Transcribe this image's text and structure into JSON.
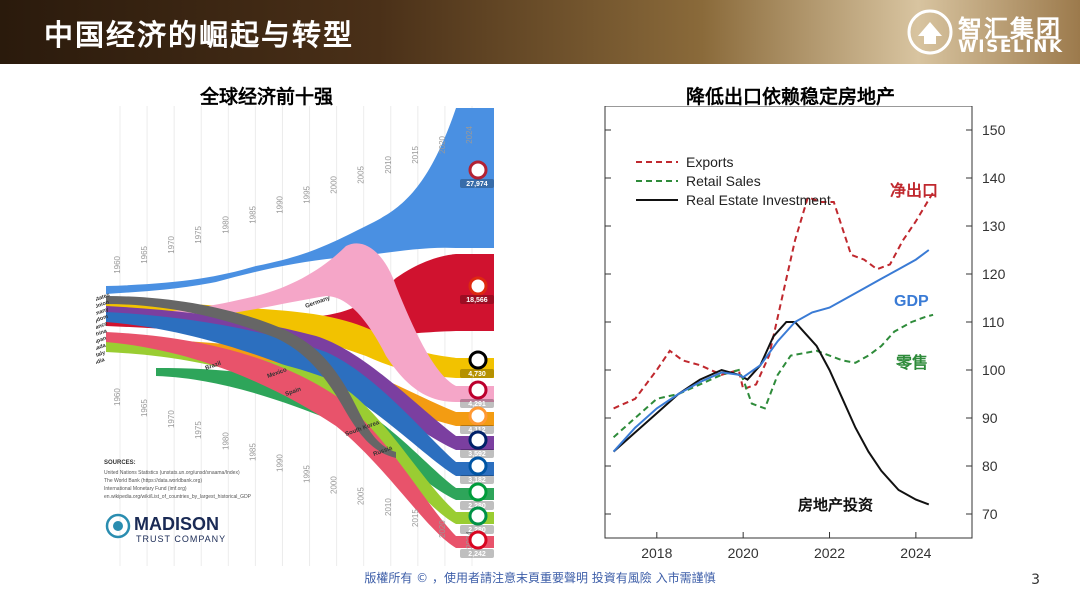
{
  "header": {
    "title": "中国经济的崛起与转型"
  },
  "logo": {
    "cn": "智汇集团",
    "en": "WISELINK"
  },
  "left": {
    "title": "全球经济前十强",
    "years": [
      "1960",
      "1965",
      "1970",
      "1975",
      "1980",
      "1985",
      "1990",
      "1995",
      "2000",
      "2005",
      "2010",
      "2015",
      "2020",
      "2024"
    ],
    "country_labels": [
      {
        "name": "United States",
        "value": "27,974"
      },
      {
        "name": "China",
        "value": "18,566"
      },
      {
        "name": "Germany",
        "value": "4,730"
      },
      {
        "name": "Japan",
        "value": "4,291"
      },
      {
        "name": "India",
        "value": "4,112"
      },
      {
        "name": "United Kingdom",
        "value": "3,592"
      },
      {
        "name": "France",
        "value": "3,182"
      },
      {
        "name": "Brazil",
        "value": "2,280"
      },
      {
        "name": "Italy",
        "value": "2,280"
      },
      {
        "name": "Canada",
        "value": "2,242"
      }
    ],
    "left_list": [
      "United States",
      "Soviet Union",
      "West Germany",
      "United Kingdom",
      "France",
      "China",
      "Japan",
      "Canada",
      "Italy",
      "India"
    ],
    "mid_labels": [
      "Brazil",
      "Mexico",
      "Spain",
      "Germany",
      "South Korea",
      "Russia"
    ],
    "sources_title": "SOURCES:",
    "sources": [
      "United Nations Statistics (unstats.un.org/unsd/snaama/Index)",
      "The World Bank (https://data.worldbank.org)",
      "International Monetary Fund (imf.org)",
      "en.wikipedia.org/wiki/List_of_countries_by_largest_historical_GDP"
    ],
    "brand_main": "MADISON",
    "brand_sub": "TRUST COMPANY"
  },
  "right": {
    "title": "降低出口依赖稳定房地产",
    "annotations": {
      "exports_cn": "净出口",
      "gdp": "GDP",
      "retail_cn": "零售",
      "realestate_cn": "房地产投资"
    }
  },
  "chart_data": {
    "type": "line",
    "x_ticks": [
      "2018",
      "2020",
      "2022",
      "2024"
    ],
    "ylim": [
      65,
      155
    ],
    "y_ticks": [
      70,
      80,
      90,
      100,
      110,
      120,
      130,
      140,
      150
    ],
    "legend": "top-left",
    "series": [
      {
        "name": "Exports",
        "color": "#c0282e",
        "style": "dashed",
        "points": [
          [
            2017.0,
            92
          ],
          [
            2017.5,
            94
          ],
          [
            2018.0,
            100
          ],
          [
            2018.3,
            104
          ],
          [
            2018.6,
            102
          ],
          [
            2019.0,
            101
          ],
          [
            2019.5,
            99
          ],
          [
            2019.9,
            100
          ],
          [
            2020.0,
            96
          ],
          [
            2020.3,
            97
          ],
          [
            2020.6,
            103
          ],
          [
            2020.9,
            115
          ],
          [
            2021.2,
            127
          ],
          [
            2021.5,
            136
          ],
          [
            2021.8,
            135
          ],
          [
            2022.1,
            135
          ],
          [
            2022.5,
            124
          ],
          [
            2022.8,
            123
          ],
          [
            2023.1,
            121
          ],
          [
            2023.4,
            122
          ],
          [
            2023.7,
            127
          ],
          [
            2024.0,
            131
          ],
          [
            2024.4,
            137
          ]
        ]
      },
      {
        "name": "Retail Sales",
        "color": "#2e8b3a",
        "style": "dashed",
        "points": [
          [
            2017.0,
            86
          ],
          [
            2017.5,
            90
          ],
          [
            2018.0,
            94
          ],
          [
            2018.5,
            95
          ],
          [
            2019.0,
            97
          ],
          [
            2019.5,
            99
          ],
          [
            2019.9,
            100
          ],
          [
            2020.0,
            98
          ],
          [
            2020.2,
            93
          ],
          [
            2020.5,
            92
          ],
          [
            2020.8,
            99
          ],
          [
            2021.1,
            103
          ],
          [
            2021.4,
            103.5
          ],
          [
            2021.7,
            104
          ],
          [
            2022.0,
            103
          ],
          [
            2022.3,
            102
          ],
          [
            2022.6,
            101.5
          ],
          [
            2022.9,
            103
          ],
          [
            2023.2,
            105
          ],
          [
            2023.5,
            108
          ],
          [
            2023.9,
            110
          ],
          [
            2024.2,
            111
          ],
          [
            2024.4,
            111.5
          ]
        ]
      },
      {
        "name": "Real Estate Investment",
        "color": "#111111",
        "style": "solid",
        "points": [
          [
            2017.0,
            83
          ],
          [
            2017.5,
            87
          ],
          [
            2018.0,
            91
          ],
          [
            2018.5,
            95
          ],
          [
            2019.0,
            98
          ],
          [
            2019.5,
            100
          ],
          [
            2019.9,
            99
          ],
          [
            2020.1,
            98
          ],
          [
            2020.4,
            101
          ],
          [
            2020.7,
            107
          ],
          [
            2021.0,
            110
          ],
          [
            2021.2,
            110
          ],
          [
            2021.4,
            108
          ],
          [
            2021.7,
            105
          ],
          [
            2022.0,
            100
          ],
          [
            2022.3,
            94
          ],
          [
            2022.6,
            88
          ],
          [
            2022.9,
            83
          ],
          [
            2023.2,
            79
          ],
          [
            2023.6,
            75
          ],
          [
            2024.0,
            73
          ],
          [
            2024.3,
            72
          ]
        ]
      },
      {
        "name": "GDP",
        "color": "#3a7bd5",
        "style": "solid",
        "points": [
          [
            2017.0,
            83
          ],
          [
            2017.5,
            88
          ],
          [
            2018.0,
            92
          ],
          [
            2018.5,
            95
          ],
          [
            2019.0,
            97.5
          ],
          [
            2019.5,
            99.5
          ],
          [
            2019.9,
            99
          ],
          [
            2020.0,
            98.5
          ],
          [
            2020.4,
            101
          ],
          [
            2020.8,
            106
          ],
          [
            2021.2,
            110
          ],
          [
            2021.6,
            112
          ],
          [
            2022.0,
            113
          ],
          [
            2022.4,
            115
          ],
          [
            2022.8,
            117
          ],
          [
            2023.2,
            119
          ],
          [
            2023.6,
            121
          ],
          [
            2024.0,
            123
          ],
          [
            2024.3,
            125
          ]
        ]
      }
    ]
  },
  "footer": {
    "text": "版權所有 © ，使用者請注意末頁重要聲明  投資有風險 入市需謹慎",
    "page": "3"
  }
}
